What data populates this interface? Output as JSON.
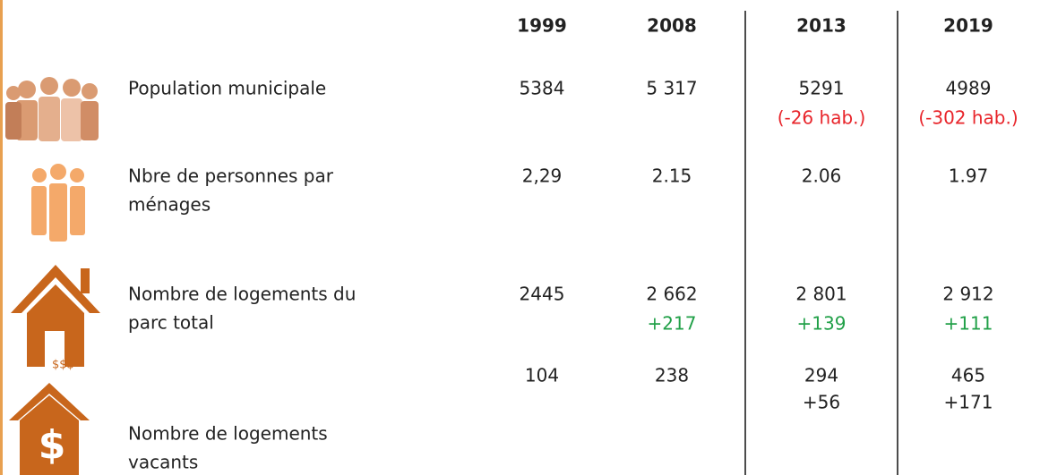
{
  "table": {
    "columns": [
      "1999",
      "2008",
      "2013",
      "2019"
    ],
    "rows": [
      {
        "label": [
          "Population municipale"
        ],
        "cells": [
          {
            "value": "5384"
          },
          {
            "value": "5 317"
          },
          {
            "value": "5291",
            "change": "(-26 hab.)"
          },
          {
            "value": "4989",
            "change": "(-302 hab.)"
          }
        ],
        "change_color": "#e8242a"
      },
      {
        "label": [
          "Nbre de personnes par",
          "ménages"
        ],
        "cells": [
          {
            "value": "2,29"
          },
          {
            "value": "2.15"
          },
          {
            "value": "2.06"
          },
          {
            "value": "1.97"
          }
        ]
      },
      {
        "label": [
          "Nombre de logements du",
          "parc total"
        ],
        "cells": [
          {
            "value": "2445"
          },
          {
            "value": "2 662",
            "change": "+217"
          },
          {
            "value": "2 801",
            "change": "+139"
          },
          {
            "value": "2 912",
            "change": "+111"
          }
        ],
        "change_color": "#21a048"
      },
      {
        "label": [
          "Nombre de logements",
          "vacants"
        ],
        "cells": [
          {
            "value": "104"
          },
          {
            "value": "238"
          },
          {
            "value": "294",
            "change": "+56"
          },
          {
            "value": "465",
            "change": "+171"
          }
        ],
        "change_color": "#222222"
      }
    ]
  }
}
